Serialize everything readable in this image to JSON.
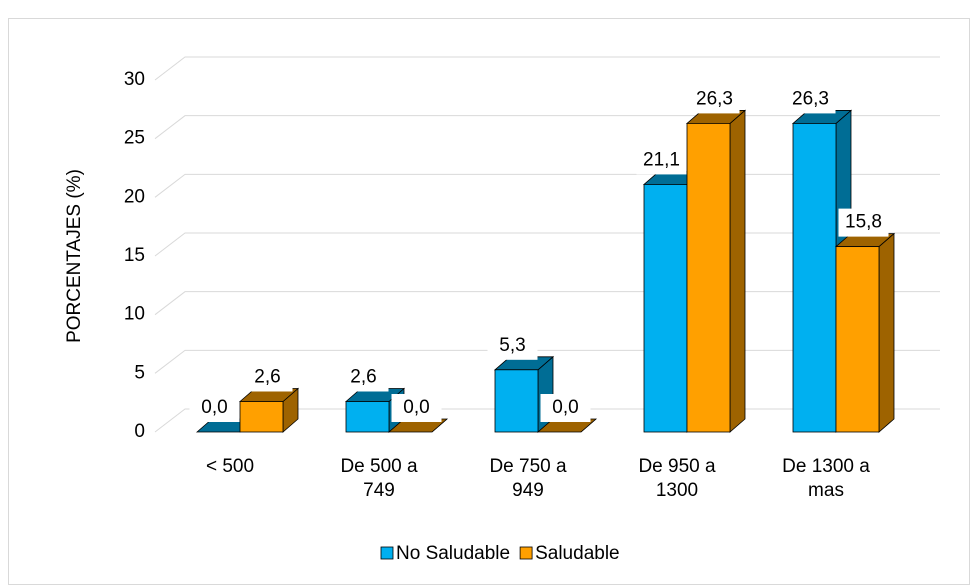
{
  "chart_data": {
    "type": "bar3d",
    "ylabel": "PORCENTAJES (%)",
    "categories": [
      "< 500",
      "De 500 a 749",
      "De 750 a 949",
      "De 950 a 1300",
      "De 1300 a mas"
    ],
    "series": [
      {
        "name": "No Saludable",
        "color": "#00b0f0",
        "values": [
          0.0,
          2.6,
          5.3,
          21.1,
          26.3
        ],
        "value_labels": [
          "0,0",
          "2,6",
          "5,3",
          "21,1",
          "26,3"
        ]
      },
      {
        "name": "Saludable",
        "color": "#ffa000",
        "values": [
          2.6,
          0.0,
          0.0,
          26.3,
          15.8
        ],
        "value_labels": [
          "2,6",
          "0,0",
          "0,0",
          "26,3",
          "15,8"
        ]
      }
    ],
    "ylim": [
      0,
      30
    ],
    "yticks": [
      0,
      5,
      10,
      15,
      20,
      25,
      30
    ],
    "grid": true,
    "legend": "bottom"
  }
}
